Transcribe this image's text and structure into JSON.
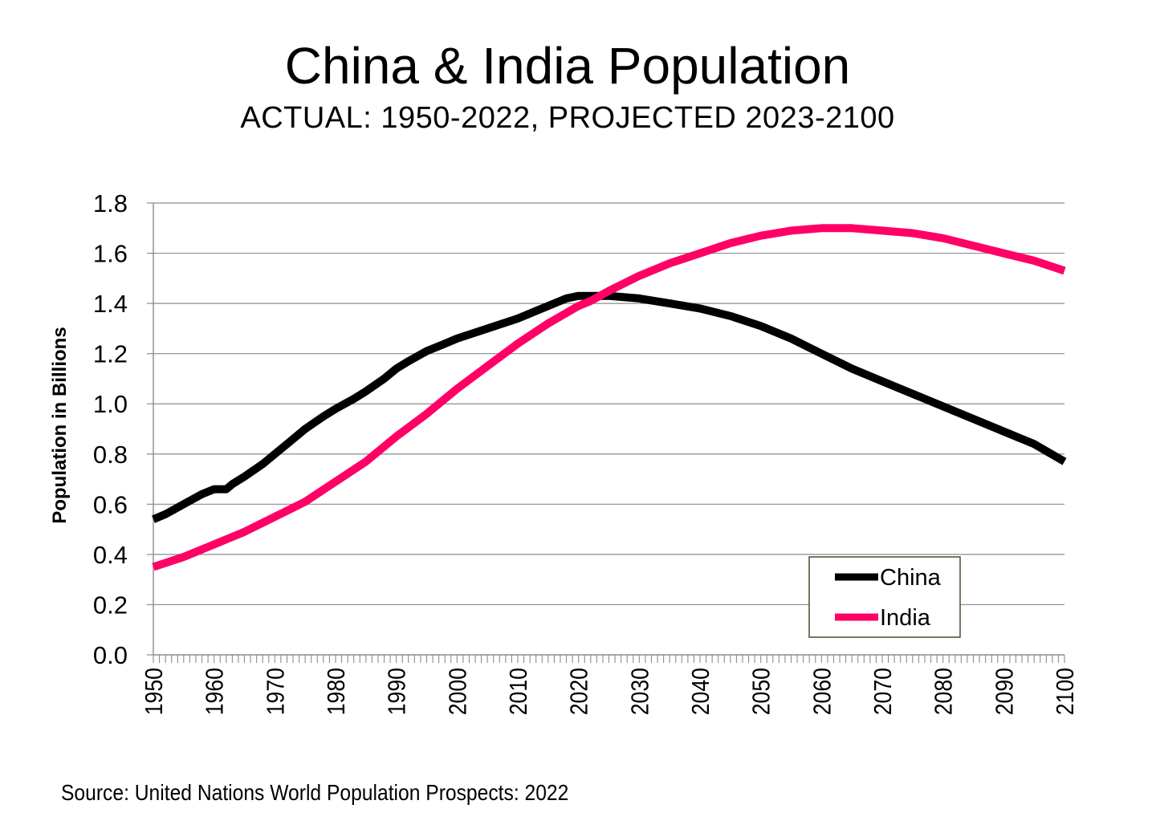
{
  "chart_data": {
    "type": "line",
    "title": "China & India Population",
    "subtitle": "ACTUAL: 1950-2022, PROJECTED 2023-2100",
    "xlabel": "",
    "ylabel": "Population in Billions",
    "xlim": [
      1950,
      2100
    ],
    "ylim": [
      0,
      1.8
    ],
    "yticks": [
      "0.0",
      "0.2",
      "0.4",
      "0.6",
      "0.8",
      "1.0",
      "1.2",
      "1.4",
      "1.6",
      "1.8"
    ],
    "xticks": [
      "1950",
      "1960",
      "1970",
      "1980",
      "1990",
      "2000",
      "2010",
      "2020",
      "2030",
      "2040",
      "2050",
      "2060",
      "2070",
      "2080",
      "2090",
      "2100"
    ],
    "grid": true,
    "legend_position": "bottom-right",
    "series": [
      {
        "name": "China",
        "color": "#000000",
        "points": [
          [
            1950,
            0.54
          ],
          [
            1952,
            0.56
          ],
          [
            1955,
            0.6
          ],
          [
            1958,
            0.64
          ],
          [
            1960,
            0.66
          ],
          [
            1962,
            0.66
          ],
          [
            1963,
            0.68
          ],
          [
            1965,
            0.71
          ],
          [
            1968,
            0.76
          ],
          [
            1970,
            0.8
          ],
          [
            1972,
            0.84
          ],
          [
            1975,
            0.9
          ],
          [
            1978,
            0.95
          ],
          [
            1980,
            0.98
          ],
          [
            1983,
            1.02
          ],
          [
            1985,
            1.05
          ],
          [
            1988,
            1.1
          ],
          [
            1990,
            1.14
          ],
          [
            1992,
            1.17
          ],
          [
            1995,
            1.21
          ],
          [
            1998,
            1.24
          ],
          [
            2000,
            1.26
          ],
          [
            2005,
            1.3
          ],
          [
            2010,
            1.34
          ],
          [
            2015,
            1.39
          ],
          [
            2018,
            1.42
          ],
          [
            2020,
            1.43
          ],
          [
            2022,
            1.43
          ],
          [
            2025,
            1.43
          ],
          [
            2030,
            1.42
          ],
          [
            2035,
            1.4
          ],
          [
            2040,
            1.38
          ],
          [
            2045,
            1.35
          ],
          [
            2050,
            1.31
          ],
          [
            2055,
            1.26
          ],
          [
            2060,
            1.2
          ],
          [
            2065,
            1.14
          ],
          [
            2070,
            1.09
          ],
          [
            2075,
            1.04
          ],
          [
            2080,
            0.99
          ],
          [
            2085,
            0.94
          ],
          [
            2090,
            0.89
          ],
          [
            2095,
            0.84
          ],
          [
            2100,
            0.77
          ]
        ]
      },
      {
        "name": "India",
        "color": "#ff0066",
        "points": [
          [
            1950,
            0.35
          ],
          [
            1955,
            0.39
          ],
          [
            1960,
            0.44
          ],
          [
            1965,
            0.49
          ],
          [
            1970,
            0.55
          ],
          [
            1975,
            0.61
          ],
          [
            1980,
            0.69
          ],
          [
            1985,
            0.77
          ],
          [
            1990,
            0.87
          ],
          [
            1995,
            0.96
          ],
          [
            2000,
            1.06
          ],
          [
            2005,
            1.15
          ],
          [
            2010,
            1.24
          ],
          [
            2015,
            1.32
          ],
          [
            2020,
            1.39
          ],
          [
            2022,
            1.41
          ],
          [
            2025,
            1.45
          ],
          [
            2030,
            1.51
          ],
          [
            2035,
            1.56
          ],
          [
            2040,
            1.6
          ],
          [
            2045,
            1.64
          ],
          [
            2050,
            1.67
          ],
          [
            2055,
            1.69
          ],
          [
            2060,
            1.7
          ],
          [
            2065,
            1.7
          ],
          [
            2070,
            1.69
          ],
          [
            2075,
            1.68
          ],
          [
            2080,
            1.66
          ],
          [
            2085,
            1.63
          ],
          [
            2090,
            1.6
          ],
          [
            2095,
            1.57
          ],
          [
            2100,
            1.53
          ]
        ]
      }
    ]
  },
  "source": "Source: United Nations World Population Prospects: 2022"
}
